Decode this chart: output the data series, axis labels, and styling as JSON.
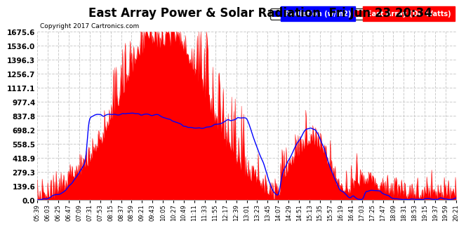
{
  "title": "East Array Power & Solar Radiation  Fri Jun 23 20:34",
  "copyright": "Copyright 2017 Cartronics.com",
  "legend_radiation": "Radiation (w/m2)",
  "legend_east": "East Array (DC Watts)",
  "yticks": [
    0.0,
    139.6,
    279.3,
    418.9,
    558.5,
    698.2,
    837.8,
    977.4,
    1117.1,
    1256.7,
    1396.3,
    1536.0,
    1675.6
  ],
  "ymax": 1675.6,
  "bg_color": "#ffffff",
  "grid_color": "#cccccc",
  "radiation_color": "#0000ff",
  "east_array_color": "#ff0000",
  "title_fontsize": 12,
  "x_labels": [
    "05:39",
    "06:03",
    "06:25",
    "06:47",
    "07:09",
    "07:31",
    "07:53",
    "08:15",
    "08:37",
    "08:59",
    "09:21",
    "09:43",
    "10:05",
    "10:27",
    "10:49",
    "11:11",
    "11:33",
    "11:55",
    "12:17",
    "12:39",
    "13:01",
    "13:23",
    "13:45",
    "14:07",
    "14:29",
    "14:51",
    "15:13",
    "15:35",
    "15:57",
    "16:19",
    "16:41",
    "17:03",
    "17:25",
    "17:47",
    "18:09",
    "18:31",
    "18:53",
    "19:15",
    "19:37",
    "19:59",
    "20:21"
  ],
  "n_ticks": 41,
  "n_dense": 600
}
